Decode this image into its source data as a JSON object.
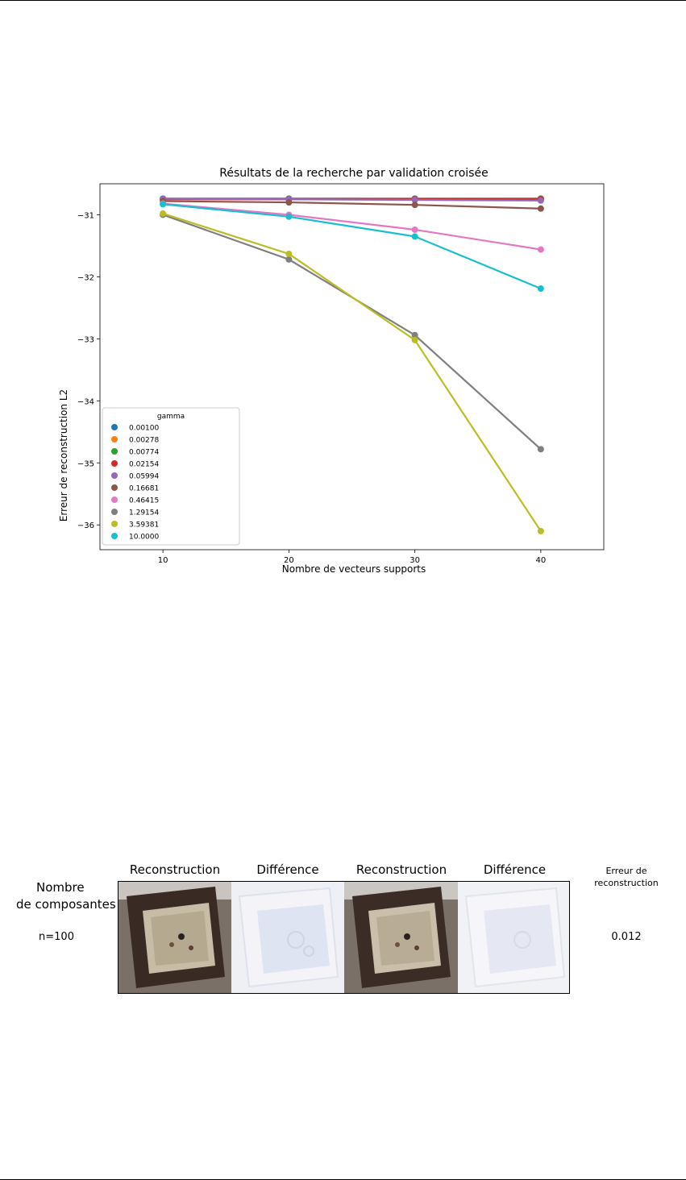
{
  "chart_data": {
    "type": "line",
    "title": "Résultats de la recherche par validation croisée",
    "xlabel": "Nombre de vecteurs supports",
    "ylabel": "Erreur de reconstruction L2",
    "x": [
      10,
      20,
      30,
      40
    ],
    "xlim": [
      5,
      45
    ],
    "ylim": [
      -36.4,
      -30.5
    ],
    "xticks": [
      "10",
      "20",
      "30",
      "40"
    ],
    "yticks": [
      "−31",
      "−32",
      "−33",
      "−34",
      "−35",
      "−36"
    ],
    "legend": {
      "title": "gamma",
      "placement": "lower-left"
    },
    "series": [
      {
        "name": "0.00100",
        "color": "#1f77b4",
        "values": [
          -30.74,
          -30.74,
          -30.74,
          -30.74
        ]
      },
      {
        "name": "0.00278",
        "color": "#ff7f0e",
        "values": [
          -30.74,
          -30.74,
          -30.74,
          -30.74
        ]
      },
      {
        "name": "0.00774",
        "color": "#2ca02c",
        "values": [
          -30.74,
          -30.74,
          -30.74,
          -30.74
        ]
      },
      {
        "name": "0.02154",
        "color": "#d62728",
        "values": [
          -30.75,
          -30.75,
          -30.75,
          -30.75
        ]
      },
      {
        "name": "0.05994",
        "color": "#9467bd",
        "values": [
          -30.74,
          -30.75,
          -30.76,
          -30.77
        ]
      },
      {
        "name": "0.16681",
        "color": "#8c564b",
        "values": [
          -30.78,
          -30.8,
          -30.84,
          -30.9
        ]
      },
      {
        "name": "0.46415",
        "color": "#e377c2",
        "values": [
          -30.82,
          -31.0,
          -31.24,
          -31.56
        ]
      },
      {
        "name": "1.29154",
        "color": "#7f7f7f",
        "values": [
          -31.0,
          -31.72,
          -32.94,
          -34.78
        ]
      },
      {
        "name": "3.59381",
        "color": "#bcbd22",
        "values": [
          -30.98,
          -31.63,
          -33.02,
          -36.1
        ]
      },
      {
        "name": "10.0000",
        "color": "#17becf",
        "values": [
          -30.83,
          -31.03,
          -31.35,
          -32.19
        ]
      }
    ]
  },
  "figure": {
    "header_components": "Nombre\nde composantes",
    "header_reconstruction_1": "Reconstruction",
    "header_difference_1": "Différence",
    "header_reconstruction_2": "Reconstruction",
    "header_difference_2": "Différence",
    "header_error": "Erreur de\nreconstruction",
    "row_label": "n=100",
    "row_error": "0.012"
  }
}
